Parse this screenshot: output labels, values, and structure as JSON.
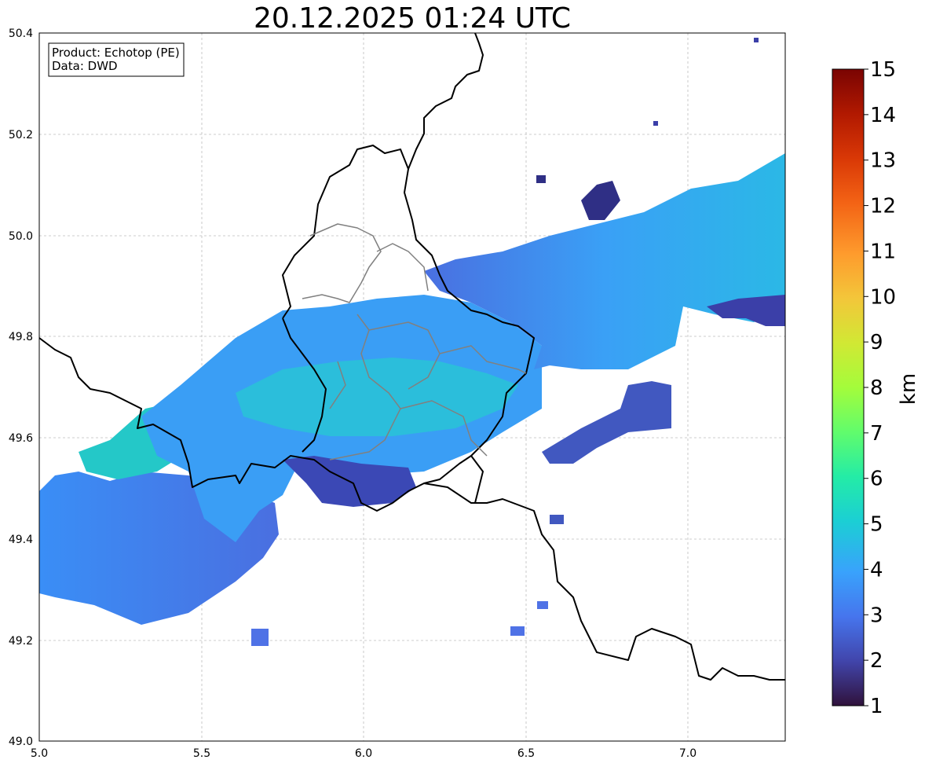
{
  "title": "20.12.2025 01:24 UTC",
  "info_box": {
    "line1": "Product: Echotop (PE)",
    "line2": "Data: DWD"
  },
  "chart_data": {
    "type": "heatmap",
    "title": "20.12.2025 01:24 UTC",
    "xlabel": "",
    "ylabel": "",
    "xlim": [
      5.0,
      7.3
    ],
    "ylim": [
      49.0,
      50.4
    ],
    "x_ticks": [
      "5.0",
      "5.5",
      "6.0",
      "6.5",
      "7.0"
    ],
    "y_ticks": [
      "49.0",
      "49.2",
      "49.4",
      "49.6",
      "49.8",
      "50.0",
      "50.2",
      "50.4"
    ],
    "grid": true,
    "colorbar": {
      "label": "km",
      "range": [
        1,
        15
      ],
      "ticks": [
        "1",
        "2",
        "3",
        "4",
        "5",
        "6",
        "7",
        "8",
        "9",
        "10",
        "11",
        "12",
        "13",
        "14",
        "15"
      ],
      "colormap": "turbo",
      "colors": [
        "#30123b",
        "#4145ab",
        "#4675ed",
        "#39a2fc",
        "#1bcfd4",
        "#24eca6",
        "#61fc6c",
        "#a4fc3b",
        "#d1e834",
        "#f3c63a",
        "#fe9b2d",
        "#f36315",
        "#d93806",
        "#b11901",
        "#7a0402"
      ]
    },
    "echotop_cells_km": [
      {
        "region": "southwest band (49.25-49.5 N, 5.0-5.7 E)",
        "value": 3.5
      },
      {
        "region": "west band (49.55-49.65 N, 5.1-5.4 E)",
        "value": 5.0
      },
      {
        "region": "central band (49.55-49.85 N, 5.5-6.55 E)",
        "value": 4.3
      },
      {
        "region": "south-central strip (49.45-49.55 N, 5.9-6.2 E)",
        "value": 2.5
      },
      {
        "region": "northeast band (49.8-50.15 N, 6.5-7.3 E)",
        "value": 4.0
      },
      {
        "region": "northeast top (50.05-50.12 N, 6.7-6.8 E)",
        "value": 2.0
      },
      {
        "region": "east-central patch (49.5-49.7 N, 6.55-6.95 E)",
        "value": 3.0
      }
    ]
  }
}
